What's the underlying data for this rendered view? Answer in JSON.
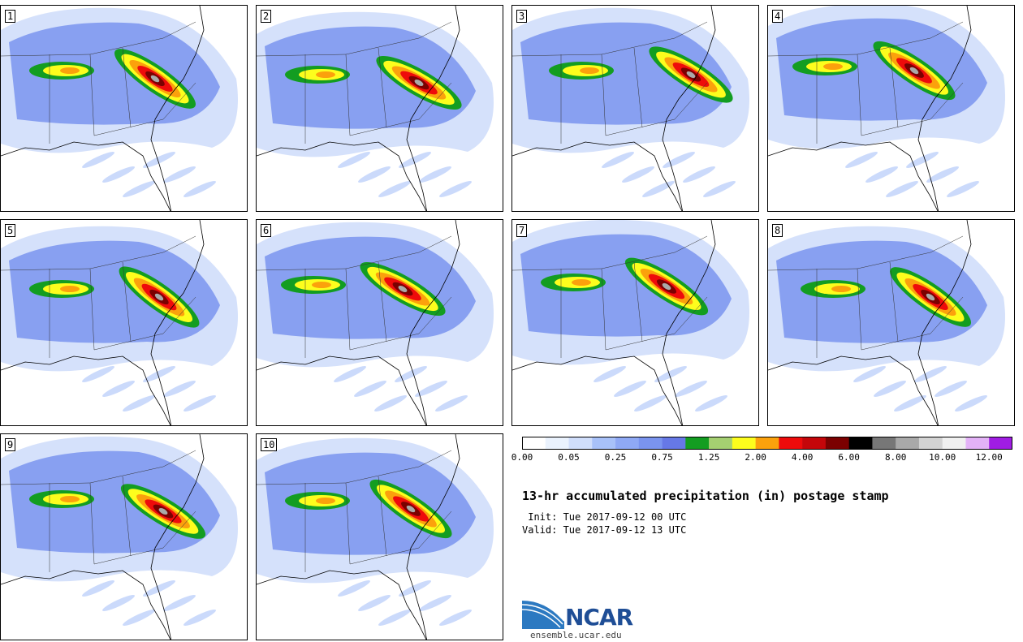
{
  "panels": [
    {
      "label": "1"
    },
    {
      "label": "2"
    },
    {
      "label": "3"
    },
    {
      "label": "4"
    },
    {
      "label": "5"
    },
    {
      "label": "6"
    },
    {
      "label": "7"
    },
    {
      "label": "8"
    },
    {
      "label": "9"
    },
    {
      "label": "10"
    }
  ],
  "colorbar": {
    "colors": [
      "#ffffff",
      "#eaf2fd",
      "#d0defb",
      "#a8c1f9",
      "#8fa9f5",
      "#7a94ef",
      "#6678e6",
      "#139d21",
      "#a5d071",
      "#fdfd1d",
      "#fba10c",
      "#ee0b0b",
      "#c4060a",
      "#7b0101",
      "#000000",
      "#777777",
      "#a9a9a9",
      "#d3d3d3",
      "#f0f0f0",
      "#e3b2f7",
      "#a01de3"
    ],
    "tick_labels": [
      "0.00",
      "0.05",
      "0.25",
      "0.75",
      "1.25",
      "2.00",
      "4.00",
      "6.00",
      "8.00",
      "10.00",
      "12.00"
    ]
  },
  "title": "13-hr accumulated precipitation (in) postage stamp",
  "init": " Init: Tue 2017-09-12 00 UTC",
  "valid": "Valid: Tue 2017-09-12 13 UTC",
  "logo": {
    "text": "NCAR",
    "site": "ensemble.ucar.edu"
  }
}
